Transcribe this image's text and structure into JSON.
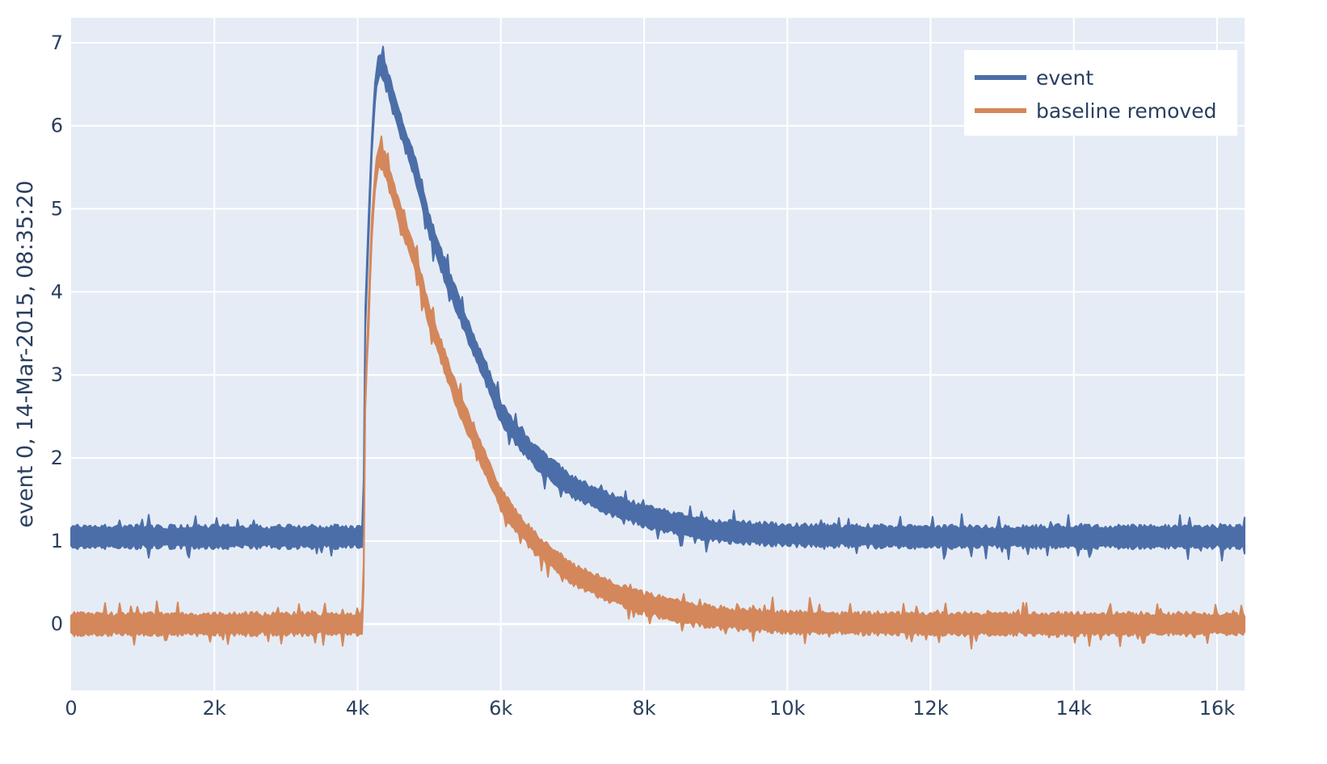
{
  "chart_data": {
    "type": "line",
    "title": "",
    "xlabel": "",
    "ylabel": "event 0, 14-Mar-2015, 08:35:20",
    "xlim": [
      0,
      16384
    ],
    "ylim": [
      -0.8,
      7.3
    ],
    "x_ticks": [
      0,
      2000,
      4000,
      6000,
      8000,
      10000,
      12000,
      14000,
      16000
    ],
    "x_tick_labels": [
      "0",
      "2k",
      "4k",
      "6k",
      "8k",
      "10k",
      "12k",
      "14k",
      "16k"
    ],
    "y_ticks": [
      0,
      1,
      2,
      3,
      4,
      5,
      6,
      7
    ],
    "y_tick_labels": [
      "0",
      "1",
      "2",
      "3",
      "4",
      "5",
      "6",
      "7"
    ],
    "grid": true,
    "background": "#e5ecf6",
    "legend": "top-right",
    "series": [
      {
        "name": "event",
        "color": "#4c6ea8",
        "noise_amplitude": 0.12,
        "x": [
          0,
          1000,
          2000,
          3000,
          4000,
          4080,
          4100,
          4150,
          4200,
          4250,
          4300,
          4350,
          4400,
          4500,
          4600,
          4800,
          5000,
          5200,
          5400,
          5600,
          5800,
          6000,
          6200,
          6500,
          7000,
          7500,
          8000,
          8500,
          9000,
          10000,
          12000,
          14000,
          16384
        ],
        "y": [
          1.05,
          1.05,
          1.05,
          1.05,
          1.05,
          1.05,
          3.5,
          4.7,
          5.8,
          6.5,
          6.75,
          6.7,
          6.6,
          6.3,
          6.0,
          5.5,
          4.8,
          4.3,
          3.85,
          3.4,
          3.0,
          2.55,
          2.3,
          2.0,
          1.65,
          1.45,
          1.3,
          1.2,
          1.12,
          1.07,
          1.05,
          1.05,
          1.05
        ]
      },
      {
        "name": "baseline removed",
        "color": "#d4875a",
        "noise_amplitude": 0.12,
        "x": [
          0,
          1000,
          2000,
          3000,
          4000,
          4080,
          4100,
          4150,
          4200,
          4250,
          4300,
          4350,
          4400,
          4500,
          4600,
          4800,
          5000,
          5200,
          5400,
          5600,
          5800,
          6000,
          6200,
          6500,
          7000,
          7500,
          8000,
          8500,
          9000,
          10000,
          12000,
          14000,
          16384
        ],
        "y": [
          0.0,
          0.0,
          0.0,
          0.0,
          0.0,
          0.0,
          2.5,
          3.7,
          4.8,
          5.4,
          5.65,
          5.6,
          5.5,
          5.2,
          4.9,
          4.4,
          3.7,
          3.2,
          2.7,
          2.3,
          1.9,
          1.5,
          1.25,
          0.95,
          0.6,
          0.4,
          0.25,
          0.15,
          0.08,
          0.02,
          0.0,
          0.0,
          0.0
        ]
      }
    ]
  }
}
